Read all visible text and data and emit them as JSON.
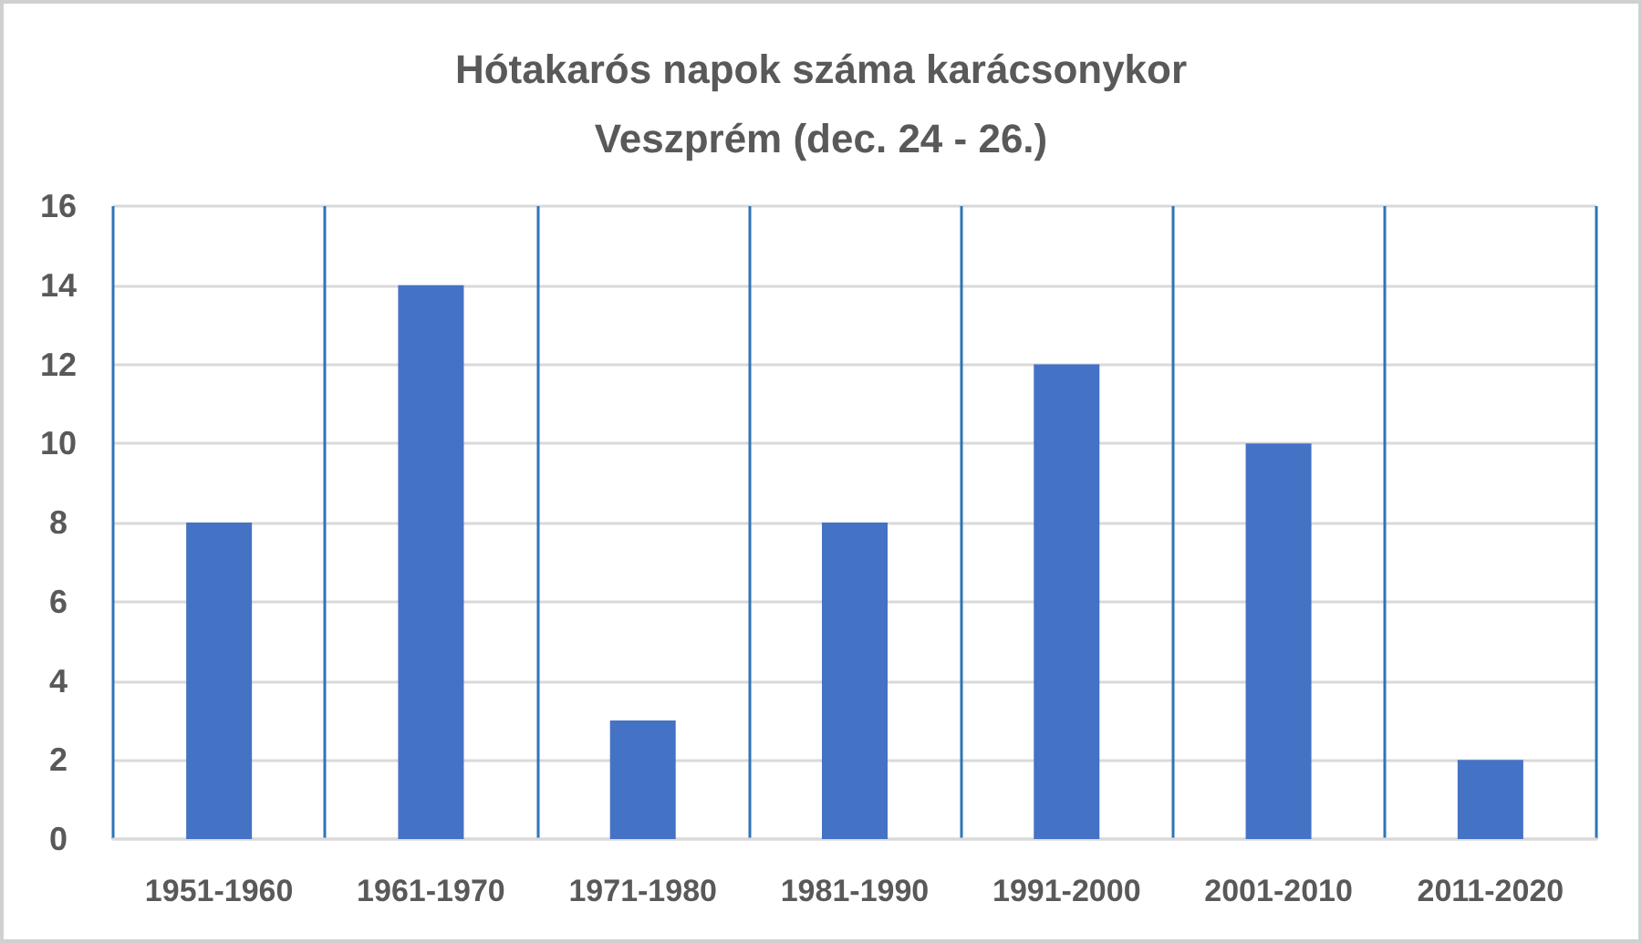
{
  "chart_data": {
    "type": "bar",
    "title": "Hótakarós napok száma karácsonykor",
    "subtitle": "Veszprém (dec. 24 - 26.)",
    "categories": [
      "1951-1960",
      "1961-1970",
      "1971-1980",
      "1981-1990",
      "1991-2000",
      "2001-2010",
      "2011-2020"
    ],
    "values": [
      8,
      14,
      3,
      8,
      12,
      10,
      2
    ],
    "color": "#4472c4",
    "ylim": [
      0,
      16
    ],
    "yticks": [
      0,
      2,
      4,
      6,
      8,
      10,
      12,
      14,
      16
    ],
    "grid": true
  }
}
